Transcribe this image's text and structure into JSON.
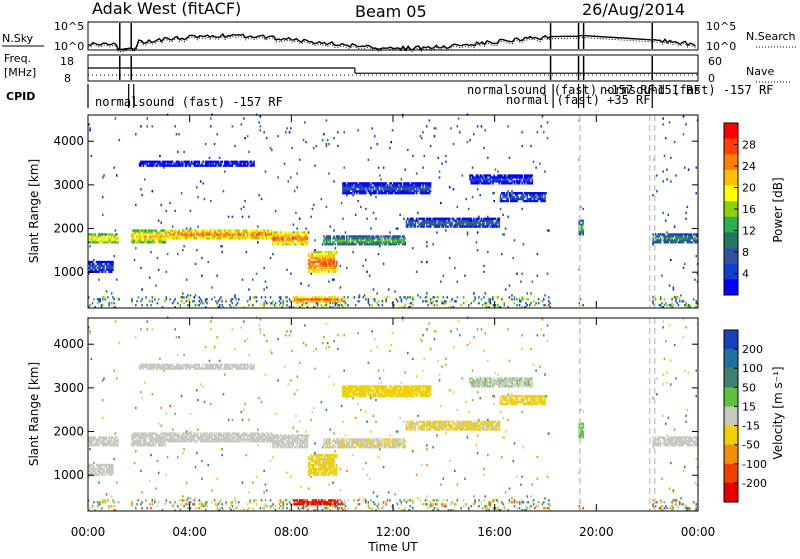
{
  "header": {
    "station": "Adak West (fitACF)",
    "beam": "Beam 05",
    "date": "26/Aug/2014"
  },
  "noise_panel": {
    "left_label": "N.Sky",
    "right_label": "N.Search",
    "left_ticks": [
      "10^5",
      "10^0"
    ],
    "right_ticks": [
      "10^5",
      "10^0"
    ]
  },
  "freq_panel": {
    "left_label_1": "Freq.",
    "left_label_2": "[MHz]",
    "right_label": "Nave",
    "left_ticks": [
      "18",
      "8"
    ],
    "right_ticks": [
      "60",
      "0"
    ]
  },
  "cpid_panel": {
    "label": "CPID",
    "annotations": [
      "normalsound (fast) -157 RF",
      "normalsound (fast) -157 RF",
      "normal (fast) +35 RF",
      "normsound (fast) -157 RF",
      "-151 RF"
    ]
  },
  "range_axis": {
    "label": "Slant Range [km]",
    "ticks": [
      "4000",
      "3000",
      "2000",
      "1000"
    ]
  },
  "time_axis": {
    "label": "Time UT",
    "ticks": [
      "00:00",
      "04:00",
      "08:00",
      "12:00",
      "16:00",
      "20:00",
      "00:00"
    ]
  },
  "power_colorbar": {
    "label": "Power [dB]",
    "ticks": [
      "28",
      "24",
      "20",
      "16",
      "12",
      "8",
      "4"
    ],
    "colors": [
      "#ff0000",
      "#ff4000",
      "#ff8000",
      "#ffc000",
      "#ffff00",
      "#8fd000",
      "#2fb050",
      "#207860",
      "#3050a0",
      "#1040d0",
      "#0000ff"
    ]
  },
  "velocity_colorbar": {
    "label": "Velocity [m s⁻¹]",
    "ticks": [
      "200",
      "100",
      "50",
      "15",
      "-15",
      "-50",
      "-100",
      "-200"
    ],
    "colors": [
      "#1840c0",
      "#2070a0",
      "#408070",
      "#60c040",
      "#c8c8c0",
      "#f0d000",
      "#f09000",
      "#f04000",
      "#e80000"
    ]
  },
  "chart_data": {
    "type": "heatmap",
    "x_unit": "hours UT",
    "xlim": [
      0,
      24
    ],
    "ylim": [
      180,
      4600
    ],
    "power_scale": [
      0,
      30
    ],
    "velocity_scale": [
      -250,
      250
    ],
    "scatter_bands": [
      {
        "start": 0.0,
        "end": 1.2,
        "center": 1750,
        "width": 250,
        "power": 20,
        "velocity": 0
      },
      {
        "start": 1.7,
        "end": 3.0,
        "center": 1800,
        "width": 280,
        "power": 22,
        "velocity": 0
      },
      {
        "start": 3.0,
        "end": 7.2,
        "center": 1850,
        "width": 250,
        "power": 24,
        "velocity": -5
      },
      {
        "start": 7.2,
        "end": 8.6,
        "center": 1750,
        "width": 300,
        "power": 25,
        "velocity": -10
      },
      {
        "start": 8.6,
        "end": 9.8,
        "center": 1200,
        "width": 500,
        "power": 26,
        "velocity": -40
      },
      {
        "start": 9.2,
        "end": 12.5,
        "center": 1700,
        "width": 250,
        "power": 14,
        "velocity": -20
      },
      {
        "start": 12.5,
        "end": 16.2,
        "center": 2100,
        "width": 220,
        "power": 10,
        "velocity": -30
      },
      {
        "start": 16.2,
        "end": 18.0,
        "center": 2700,
        "width": 250,
        "power": 8,
        "velocity": -40
      },
      {
        "start": 10.0,
        "end": 13.5,
        "center": 2900,
        "width": 250,
        "power": 8,
        "velocity": -60
      },
      {
        "start": 15.0,
        "end": 17.5,
        "center": 3100,
        "width": 200,
        "power": 6,
        "velocity": 20
      },
      {
        "start": 2.0,
        "end": 6.5,
        "center": 3450,
        "width": 150,
        "power": 5,
        "velocity": 0
      },
      {
        "start": 0.0,
        "end": 1.0,
        "center": 1100,
        "width": 250,
        "power": 8,
        "velocity": 0
      },
      {
        "start": 8.0,
        "end": 10.0,
        "center": 350,
        "width": 150,
        "power": 26,
        "velocity": -200
      },
      {
        "start": 19.3,
        "end": 19.5,
        "center": 2000,
        "width": 400,
        "power": 14,
        "velocity": 50
      },
      {
        "start": 22.2,
        "end": 24.0,
        "center": 1750,
        "width": 250,
        "power": 12,
        "velocity": -10
      }
    ],
    "data_gaps": [
      [
        1.25,
        1.7
      ],
      [
        18.2,
        19.3
      ],
      [
        19.5,
        22.2
      ]
    ],
    "frequency_mhz": [
      [
        0,
        10.5,
        13
      ],
      [
        10.5,
        24,
        11
      ]
    ],
    "cpid_segments": [
      "normalsound (fast) -157 RF",
      "normal (fast) +35 RF",
      "-151 RF"
    ]
  }
}
